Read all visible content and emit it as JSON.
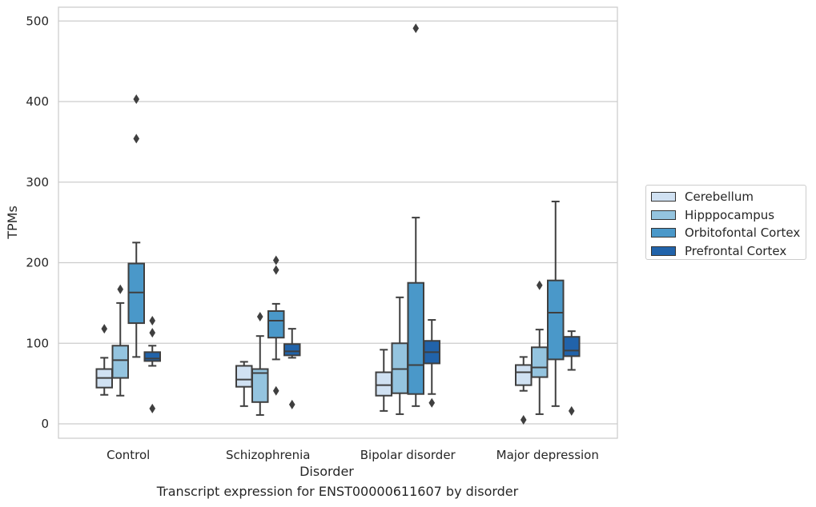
{
  "chart_data": {
    "type": "box",
    "xlabel": "Disorder",
    "ylabel": "TPMs",
    "caption": "Transcript expression for ENST00000611607 by disorder",
    "categories": [
      "Control",
      "Schizophrenia",
      "Bipolar disorder",
      "Major depression"
    ],
    "yticks": [
      0,
      100,
      200,
      300,
      400,
      500
    ],
    "ylim": [
      -18,
      518
    ],
    "grid": "horizontal",
    "legend_position": "right",
    "series": [
      {
        "name": "Cerebellum",
        "color": "#d0e1f2",
        "boxes": [
          {
            "whislo": 36,
            "q1": 45,
            "med": 57,
            "q3": 68,
            "whishi": 82,
            "fliers": [
              118
            ]
          },
          {
            "whislo": 22,
            "q1": 46,
            "med": 55,
            "q3": 72,
            "whishi": 77,
            "fliers": []
          },
          {
            "whislo": 16,
            "q1": 35,
            "med": 48,
            "q3": 64,
            "whishi": 92,
            "fliers": []
          },
          {
            "whislo": 41,
            "q1": 48,
            "med": 64,
            "q3": 73,
            "whishi": 83,
            "fliers": [
              5
            ]
          }
        ]
      },
      {
        "name": "Hipppocampus",
        "color": "#94c4df",
        "boxes": [
          {
            "whislo": 35,
            "q1": 57,
            "med": 79,
            "q3": 97,
            "whishi": 150,
            "fliers": [
              167
            ]
          },
          {
            "whislo": 11,
            "q1": 27,
            "med": 63,
            "q3": 68,
            "whishi": 109,
            "fliers": [
              133
            ]
          },
          {
            "whislo": 12,
            "q1": 38,
            "med": 68,
            "q3": 100,
            "whishi": 157,
            "fliers": []
          },
          {
            "whislo": 12,
            "q1": 58,
            "med": 70,
            "q3": 95,
            "whishi": 117,
            "fliers": [
              172
            ]
          }
        ]
      },
      {
        "name": "Orbitofontal Cortex",
        "color": "#4a98c9",
        "boxes": [
          {
            "whislo": 83,
            "q1": 125,
            "med": 163,
            "q3": 199,
            "whishi": 225,
            "fliers": [
              354,
              403
            ]
          },
          {
            "whislo": 80,
            "q1": 107,
            "med": 128,
            "q3": 140,
            "whishi": 149,
            "fliers": [
              41,
              191,
              203
            ]
          },
          {
            "whislo": 22,
            "q1": 37,
            "med": 73,
            "q3": 175,
            "whishi": 256,
            "fliers": [
              491
            ]
          },
          {
            "whislo": 22,
            "q1": 80,
            "med": 138,
            "q3": 178,
            "whishi": 276,
            "fliers": []
          }
        ]
      },
      {
        "name": "Prefrontal Cortex",
        "color": "#2163aa",
        "boxes": [
          {
            "whislo": 72,
            "q1": 78,
            "med": 81,
            "q3": 89,
            "whishi": 97,
            "fliers": [
              19,
              113,
              128
            ]
          },
          {
            "whislo": 82,
            "q1": 85,
            "med": 90,
            "q3": 99,
            "whishi": 118,
            "fliers": [
              24
            ]
          },
          {
            "whislo": 37,
            "q1": 75,
            "med": 89,
            "q3": 103,
            "whishi": 129,
            "fliers": [
              26
            ]
          },
          {
            "whislo": 67,
            "q1": 84,
            "med": 91,
            "q3": 108,
            "whishi": 115,
            "fliers": [
              16
            ]
          }
        ]
      }
    ]
  }
}
